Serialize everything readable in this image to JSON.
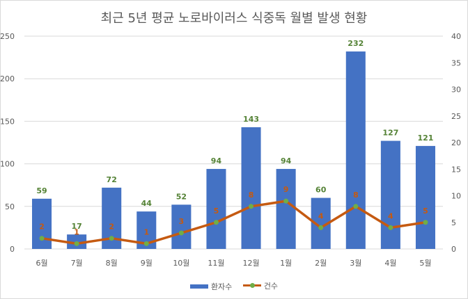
{
  "chart_data": {
    "type": "bar",
    "title": "최근 5년 평균 노로바이러스 식중독 월별 발생 현황",
    "categories": [
      "6월",
      "7월",
      "8월",
      "9월",
      "10월",
      "11월",
      "12월",
      "1월",
      "2월",
      "3월",
      "4월",
      "5월"
    ],
    "series": [
      {
        "name": "환자수",
        "type": "bar",
        "axis": "left",
        "values": [
          59,
          17,
          72,
          44,
          52,
          94,
          143,
          94,
          60,
          232,
          127,
          121
        ]
      },
      {
        "name": "건수",
        "type": "line",
        "axis": "right",
        "values": [
          2,
          1,
          2,
          1,
          3,
          5,
          8,
          9,
          4,
          8,
          4,
          5
        ]
      }
    ],
    "y_left": {
      "min": 0,
      "max": 250,
      "ticks": [
        0,
        50,
        100,
        150,
        200,
        250
      ]
    },
    "y_right": {
      "min": 0,
      "max": 40,
      "ticks": [
        0,
        5,
        10,
        15,
        20,
        25,
        30,
        35,
        40
      ]
    },
    "grid": true,
    "legend_position": "bottom"
  },
  "colors": {
    "bar": "#4472c4",
    "line": "#c55a11",
    "marker": "#70ad47",
    "bar_label": "#548235",
    "grid": "#d9d9d9"
  }
}
